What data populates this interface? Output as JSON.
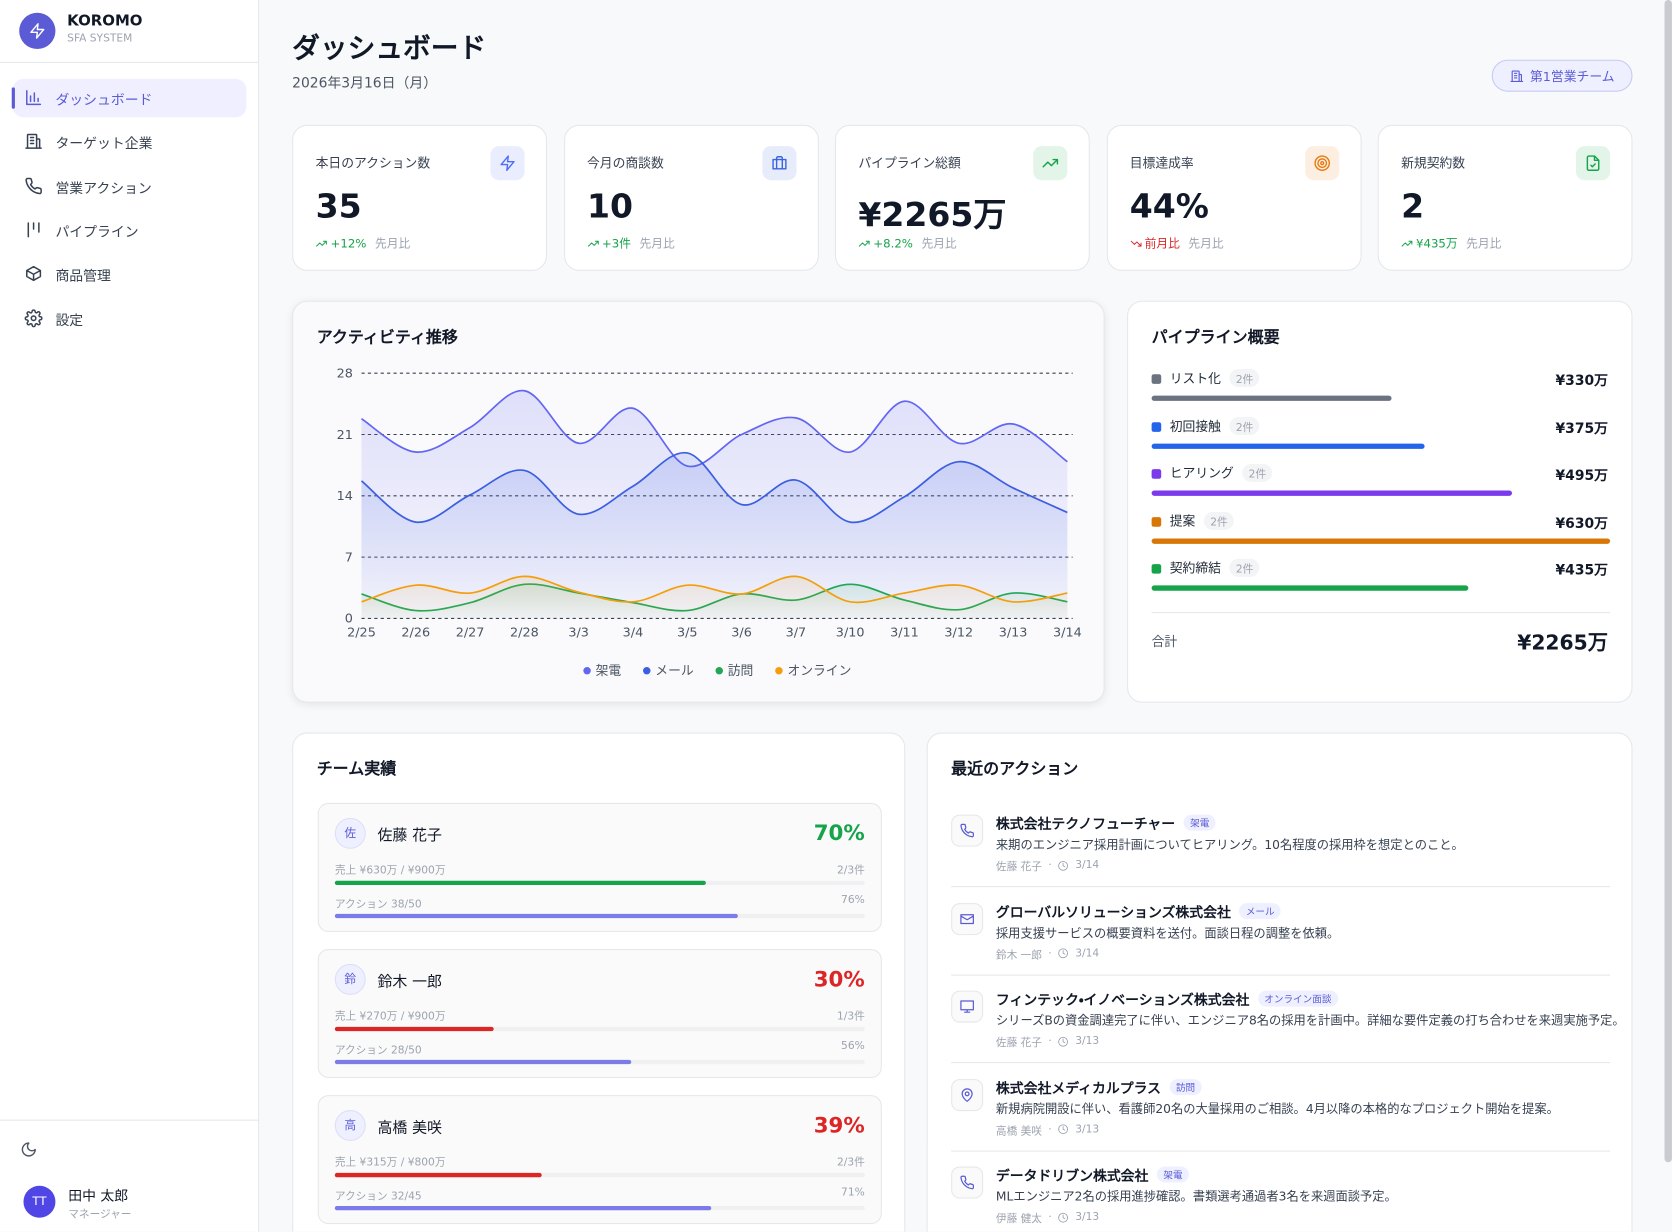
{
  "sidebar": {
    "brand": "KOROMO",
    "subtitle": "SFA SYSTEM",
    "nav": [
      "ダッシュボード",
      "ターゲット企業",
      "営業アクション",
      "パイプライン",
      "商品管理",
      "設定"
    ],
    "user": {
      "initials": "TT",
      "name": "田中 太郎",
      "role": "マネージャー"
    }
  },
  "header": {
    "title": "ダッシュボード",
    "date": "2026年3月16日（月）",
    "team": "第1営業チーム"
  },
  "kpis": [
    {
      "label": "本日のアクション数",
      "value": "35",
      "change": "+12%",
      "compare": "先月比",
      "trend": "up",
      "color": "#4f6ef7"
    },
    {
      "label": "今月の商談数",
      "value": "10",
      "change": "+3件",
      "compare": "先月比",
      "trend": "up",
      "color": "#3b63e0"
    },
    {
      "label": "パイプライン総額",
      "value": "¥2265万",
      "change": "+8.2%",
      "compare": "先月比",
      "trend": "up",
      "color": "#16a34a"
    },
    {
      "label": "目標達成率",
      "value": "44%",
      "change": "前月比",
      "compare": "先月比",
      "trend": "down",
      "color": "#ea7a0c"
    },
    {
      "label": "新規契約数",
      "value": "2",
      "change": "¥435万",
      "compare": "先月比",
      "trend": "up",
      "color": "#16a34a"
    }
  ],
  "chart_data": {
    "type": "line",
    "title": "アクティビティ推移",
    "categories": [
      "2/25",
      "2/26",
      "2/27",
      "2/28",
      "3/3",
      "3/4",
      "3/5",
      "3/6",
      "3/7",
      "3/10",
      "3/11",
      "3/12",
      "3/13",
      "3/14"
    ],
    "series": [
      {
        "name": "架電",
        "color": "#6366f1",
        "values": [
          22.8,
          19,
          21.8,
          26,
          20,
          24,
          17.4,
          21,
          22.9,
          19,
          24.8,
          20,
          22.2,
          17.9
        ]
      },
      {
        "name": "メール",
        "color": "#3b5fe0",
        "values": [
          15.7,
          11,
          14.1,
          16.9,
          11.9,
          15.1,
          18.9,
          13,
          15.8,
          11,
          13.9,
          17.9,
          14.9,
          12.1
        ]
      },
      {
        "name": "訪問",
        "color": "#22a855",
        "values": [
          2.8,
          0.9,
          1.8,
          3.9,
          2.9,
          1.8,
          0.9,
          2.8,
          2.1,
          3.9,
          2.1,
          1,
          2.9,
          1.9
        ]
      },
      {
        "name": "オンライン",
        "color": "#f59e0b",
        "values": [
          1.9,
          3.8,
          2.9,
          4.8,
          3,
          1.9,
          3.8,
          2.8,
          4.8,
          1.9,
          2.9,
          3.8,
          1.9,
          2.9
        ]
      }
    ],
    "ylim": [
      0,
      28
    ],
    "yticks": [
      0,
      7,
      14,
      21,
      28
    ],
    "grid": true,
    "legend": "bottom"
  },
  "pipeline": {
    "title": "パイプライン概要",
    "stages": [
      {
        "name": "リスト化",
        "count": "2件",
        "amount": 330,
        "amount_label": "¥330万",
        "color": "#6b7280"
      },
      {
        "name": "初回接触",
        "count": "2件",
        "amount": 375,
        "amount_label": "¥375万",
        "color": "#2563eb"
      },
      {
        "name": "ヒアリング",
        "count": "2件",
        "amount": 495,
        "amount_label": "¥495万",
        "color": "#7c3aed"
      },
      {
        "name": "提案",
        "count": "2件",
        "amount": 630,
        "amount_label": "¥630万",
        "color": "#d97706"
      },
      {
        "name": "契約締結",
        "count": "2件",
        "amount": 435,
        "amount_label": "¥435万",
        "color": "#16a34a"
      }
    ],
    "total_label": "合計",
    "total": "¥2265万"
  },
  "team": {
    "title": "チーム実績",
    "members": [
      {
        "initial": "佐",
        "name": "佐藤 花子",
        "rate": 70,
        "rate_label": "70%",
        "sales": "売上 ¥630万 / ¥900万",
        "deals": "2/3件",
        "actions": "アクション 38/50",
        "action_rate": 76,
        "action_rate_label": "76%",
        "color": "#16a34a"
      },
      {
        "initial": "鈴",
        "name": "鈴木 一郎",
        "rate": 30,
        "rate_label": "30%",
        "sales": "売上 ¥270万 / ¥900万",
        "deals": "1/3件",
        "actions": "アクション 28/50",
        "action_rate": 56,
        "action_rate_label": "56%",
        "color": "#dc2626"
      },
      {
        "initial": "高",
        "name": "高橋 美咲",
        "rate": 39,
        "rate_label": "39%",
        "sales": "売上 ¥315万 / ¥800万",
        "deals": "2/3件",
        "actions": "アクション 32/45",
        "action_rate": 71,
        "action_rate_label": "71%",
        "color": "#dc2626"
      }
    ]
  },
  "recent": {
    "title": "最近のアクション",
    "items": [
      {
        "company": "株式会社テクノフューチャー",
        "tag": "架電",
        "text": "来期のエンジニア採用計画についてヒアリング。10名程度の採用枠を想定とのこと。",
        "person": "佐藤 花子",
        "date": "3/14"
      },
      {
        "company": "グローバルソリューションズ株式会社",
        "tag": "メール",
        "text": "採用支援サービスの概要資料を送付。面談日程の調整を依頼。",
        "person": "鈴木 一郎",
        "date": "3/14"
      },
      {
        "company": "フィンテック・イノベーションズ株式会社",
        "tag": "オンライン面談",
        "text": "シリーズBの資金調達完了に伴い、エンジニア8名の採用を計画中。詳細な要件定義の打ち合わせを来週実施予定。",
        "person": "佐藤 花子",
        "date": "3/13"
      },
      {
        "company": "株式会社メディカルプラス",
        "tag": "訪問",
        "text": "新規病院開設に伴い、看護師20名の大量採用のご相談。4月以降の本格的なプロジェクト開始を提案。",
        "person": "高橋 美咲",
        "date": "3/13"
      },
      {
        "company": "データドリブン株式会社",
        "tag": "架電",
        "text": "MLエンジニア2名の採用進捗確認。書類選考通過者3名を来週面談予定。",
        "person": "伊藤 健太",
        "date": "3/13"
      }
    ]
  }
}
